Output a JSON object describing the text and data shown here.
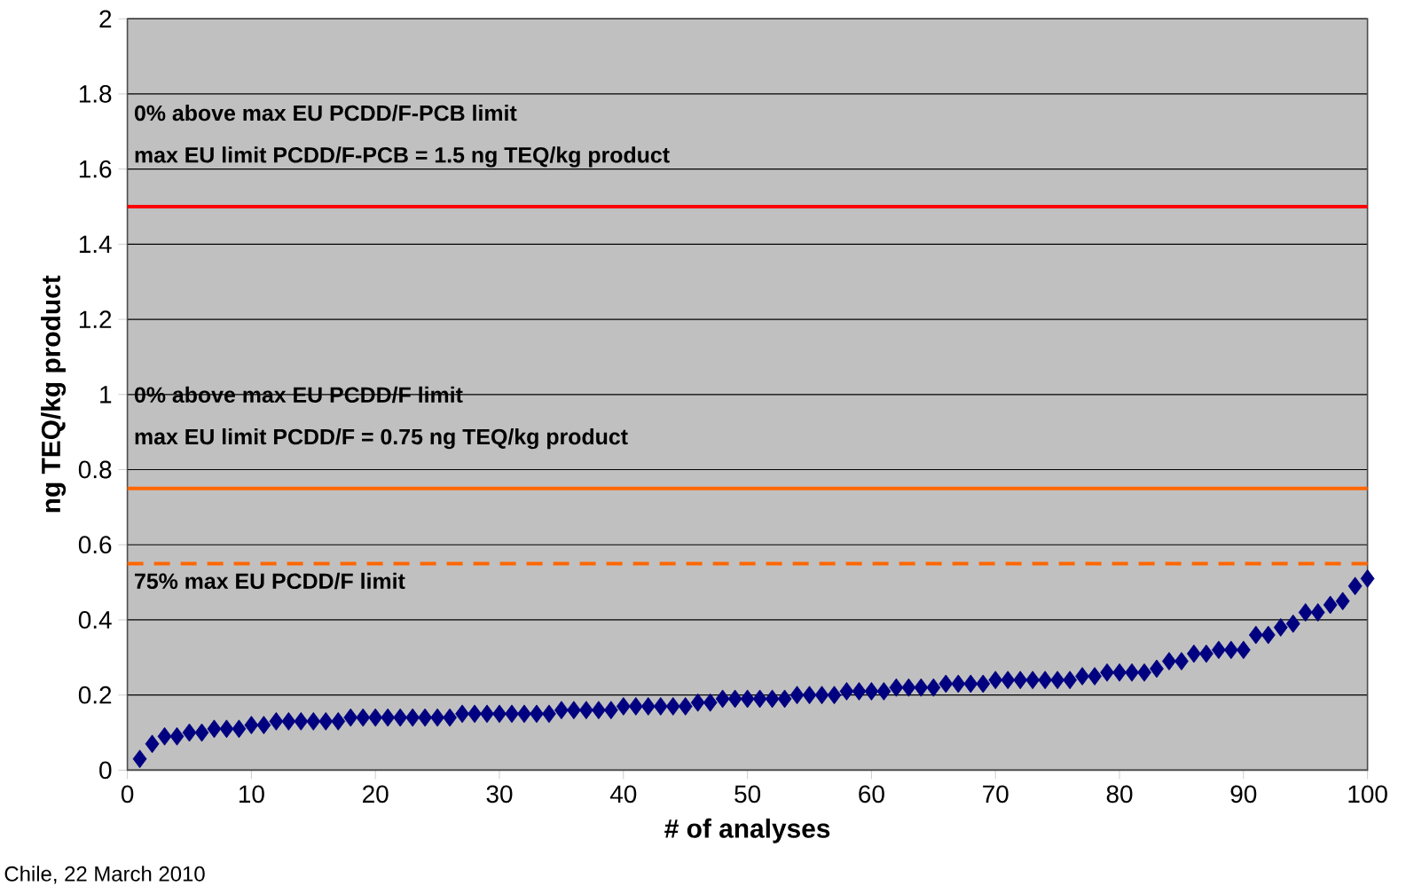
{
  "chart_data": {
    "type": "scatter",
    "xlabel": "# of analyses",
    "ylabel": "ng TEQ/kg product",
    "x": [
      1,
      2,
      3,
      4,
      5,
      6,
      7,
      8,
      9,
      10,
      11,
      12,
      13,
      14,
      15,
      16,
      17,
      18,
      19,
      20,
      21,
      22,
      23,
      24,
      25,
      26,
      27,
      28,
      29,
      30,
      31,
      32,
      33,
      34,
      35,
      36,
      37,
      38,
      39,
      40,
      41,
      42,
      43,
      44,
      45,
      46,
      47,
      48,
      49,
      50,
      51,
      52,
      53,
      54,
      55,
      56,
      57,
      58,
      59,
      60,
      61,
      62,
      63,
      64,
      65,
      66,
      67,
      68,
      69,
      70,
      71,
      72,
      73,
      74,
      75,
      76,
      77,
      78,
      79,
      80,
      81,
      82,
      83,
      84,
      85,
      86,
      87,
      88,
      89,
      90,
      91,
      92,
      93,
      94,
      95,
      96,
      97,
      98,
      99,
      100
    ],
    "values": [
      0.03,
      0.07,
      0.09,
      0.09,
      0.1,
      0.1,
      0.11,
      0.11,
      0.11,
      0.12,
      0.12,
      0.13,
      0.13,
      0.13,
      0.13,
      0.13,
      0.13,
      0.14,
      0.14,
      0.14,
      0.14,
      0.14,
      0.14,
      0.14,
      0.14,
      0.14,
      0.15,
      0.15,
      0.15,
      0.15,
      0.15,
      0.15,
      0.15,
      0.15,
      0.16,
      0.16,
      0.16,
      0.16,
      0.16,
      0.17,
      0.17,
      0.17,
      0.17,
      0.17,
      0.17,
      0.18,
      0.18,
      0.19,
      0.19,
      0.19,
      0.19,
      0.19,
      0.19,
      0.2,
      0.2,
      0.2,
      0.2,
      0.21,
      0.21,
      0.21,
      0.21,
      0.22,
      0.22,
      0.22,
      0.22,
      0.23,
      0.23,
      0.23,
      0.23,
      0.24,
      0.24,
      0.24,
      0.24,
      0.24,
      0.24,
      0.24,
      0.25,
      0.25,
      0.26,
      0.26,
      0.26,
      0.26,
      0.27,
      0.29,
      0.29,
      0.31,
      0.31,
      0.32,
      0.32,
      0.32,
      0.36,
      0.36,
      0.38,
      0.39,
      0.42,
      0.42,
      0.44,
      0.45,
      0.49,
      0.51
    ],
    "color": "#000080",
    "marker": "diamond",
    "grid": "y",
    "xlim": [
      0,
      100
    ],
    "xticks": [
      0,
      10,
      20,
      30,
      40,
      50,
      60,
      70,
      80,
      90,
      100
    ],
    "ylim": [
      0,
      2
    ],
    "yticks": [
      0,
      0.2,
      0.4,
      0.6,
      0.8,
      1,
      1.2,
      1.4,
      1.6,
      1.8,
      2
    ],
    "ref_lines": [
      {
        "axis": "y",
        "value": 1.5,
        "label": "max EU limit PCDD/F-PCB = 1.5 ng TEQ/kg product",
        "color": "#ff0000",
        "line_style": "solid"
      },
      {
        "axis": "y",
        "value": 0.75,
        "label": "max EU limit PCDD/F = 0.75 ng TEQ/kg product",
        "color": "#ff6600",
        "line_style": "solid"
      },
      {
        "axis": "y",
        "value": 0.55,
        "label": "75% max EU PCDD/F limit",
        "color": "#ff6600",
        "line_style": "dashed"
      }
    ],
    "annotations": [
      "0% above max EU PCDD/F-PCB limit",
      "0% above max EU PCDD/F limit",
      "Chile, 22 March 2010"
    ]
  }
}
